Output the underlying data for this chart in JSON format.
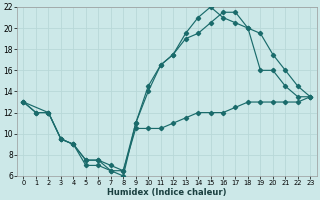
{
  "xlabel": "Humidex (Indice chaleur)",
  "bg_color": "#cce8e8",
  "grid_color": "#b8d8d8",
  "line_color": "#1a6b6b",
  "xlim": [
    -0.5,
    23.5
  ],
  "ylim": [
    6,
    22
  ],
  "xticks": [
    0,
    1,
    2,
    3,
    4,
    5,
    6,
    7,
    8,
    9,
    10,
    11,
    12,
    13,
    14,
    15,
    16,
    17,
    18,
    19,
    20,
    21,
    22,
    23
  ],
  "yticks": [
    6,
    8,
    10,
    12,
    14,
    16,
    18,
    20,
    22
  ],
  "line1_x": [
    0,
    1,
    2,
    3,
    4,
    5,
    6,
    7,
    8,
    9,
    10,
    11,
    12,
    13,
    14,
    15,
    16,
    17,
    18,
    19,
    20,
    21,
    22,
    23
  ],
  "line1_y": [
    13,
    12,
    12,
    9.5,
    9,
    7,
    7,
    6.5,
    6.5,
    10.5,
    10.5,
    10.5,
    11,
    11.5,
    12,
    12,
    12,
    12.5,
    13,
    13,
    13,
    13,
    13,
    13.5
  ],
  "line2_x": [
    0,
    1,
    2,
    3,
    4,
    5,
    6,
    7,
    8,
    9,
    10,
    11,
    12,
    13,
    14,
    15,
    16,
    17,
    18,
    19,
    20,
    21,
    22,
    23
  ],
  "line2_y": [
    13,
    12,
    12,
    9.5,
    9,
    7.5,
    7.5,
    6.5,
    6,
    11,
    14.5,
    16.5,
    17.5,
    19,
    19.5,
    20.5,
    21.5,
    21.5,
    20,
    19.5,
    17.5,
    16,
    14.5,
    13.5
  ],
  "line3_x": [
    0,
    2,
    3,
    4,
    5,
    6,
    7,
    8,
    9,
    10,
    11,
    12,
    13,
    14,
    15,
    16,
    17,
    18,
    19,
    20,
    21,
    22,
    23
  ],
  "line3_y": [
    13,
    12,
    9.5,
    9,
    7.5,
    7.5,
    7,
    6.5,
    11,
    14,
    16.5,
    17.5,
    19.5,
    21,
    22,
    21,
    20.5,
    20,
    16,
    16,
    14.5,
    13.5,
    13.5
  ]
}
